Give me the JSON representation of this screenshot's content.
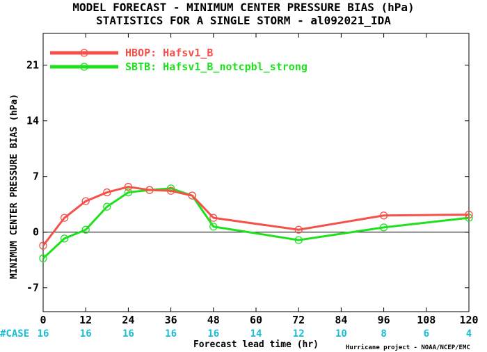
{
  "colors": {
    "series1": "#f4514b",
    "series2": "#1ee11e",
    "case": "#19bcd0",
    "zero_line": "#000000"
  },
  "chart_data": {
    "type": "line",
    "title": "MODEL FORECAST - MINIMUM CENTER PRESSURE BIAS (hPa)",
    "subtitle": "STATISTICS FOR A SINGLE STORM - al092021_IDA",
    "xlabel": "Forecast lead time (hr)",
    "ylabel": "MINIMUM CENTER PRESSURE BIAS (hPa)",
    "xlim": [
      0,
      120
    ],
    "ylim": [
      -10,
      25
    ],
    "xticks": [
      0,
      12,
      24,
      36,
      48,
      60,
      72,
      84,
      96,
      108,
      120
    ],
    "yticks": [
      -7,
      0,
      7,
      14,
      21
    ],
    "zero_line": true,
    "grid": false,
    "legend_position": "top-left",
    "series": [
      {
        "name": "HBOP: Hafsv1_B",
        "x": [
          0,
          6,
          12,
          18,
          24,
          30,
          36,
          42,
          48,
          72,
          96,
          120
        ],
        "values": [
          -1.7,
          1.8,
          3.9,
          5.0,
          5.7,
          5.3,
          5.2,
          4.6,
          1.8,
          0.3,
          2.1,
          2.2
        ]
      },
      {
        "name": "SBTB: Hafsv1_B_notcpbl_strong",
        "x": [
          0,
          6,
          12,
          18,
          24,
          30,
          36,
          42,
          48,
          72,
          96,
          120
        ],
        "values": [
          -3.3,
          -0.8,
          0.3,
          3.2,
          5.0,
          5.3,
          5.5,
          4.6,
          0.7,
          -1.0,
          0.6,
          1.8
        ]
      }
    ],
    "case_label": "#CASE",
    "case_counts": [
      {
        "x": 0,
        "n": "16"
      },
      {
        "x": 12,
        "n": "16"
      },
      {
        "x": 24,
        "n": "16"
      },
      {
        "x": 36,
        "n": "16"
      },
      {
        "x": 48,
        "n": "16"
      },
      {
        "x": 60,
        "n": "14"
      },
      {
        "x": 72,
        "n": "12"
      },
      {
        "x": 84,
        "n": "10"
      },
      {
        "x": 96,
        "n": "8"
      },
      {
        "x": 108,
        "n": "6"
      },
      {
        "x": 120,
        "n": "4"
      }
    ],
    "credit": "Hurricane project - NOAA/NCEP/EMC"
  }
}
